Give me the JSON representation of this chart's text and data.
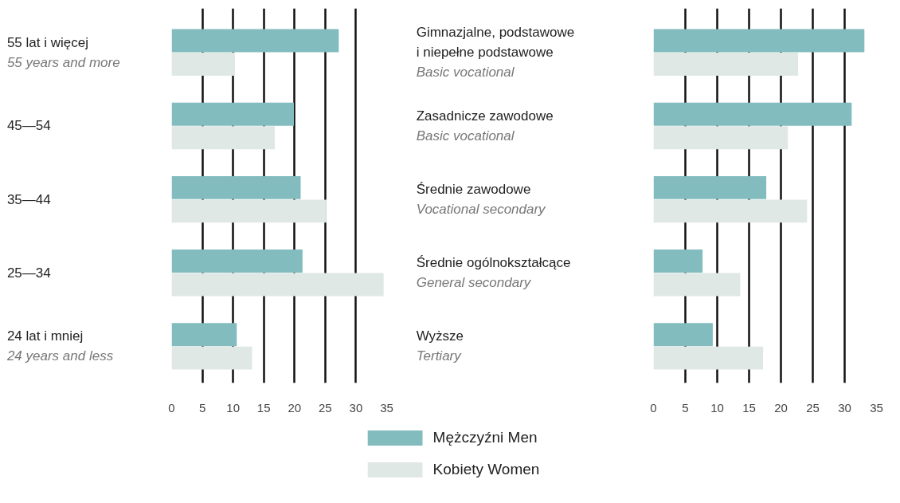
{
  "chart_data": [
    {
      "type": "bar",
      "orientation": "horizontal",
      "categories": [
        "55 lat i więcej\n55 years and more",
        "45—54",
        "35—44",
        "25—34",
        "24 lat i mniej\n24 years and less"
      ],
      "series": [
        {
          "name": "Mężczyźni Men",
          "color": "#82bcbe",
          "values": [
            27.2,
            19.9,
            21.0,
            21.3,
            10.6
          ]
        },
        {
          "name": "Kobiety Women",
          "color": "#e0e8e6",
          "values": [
            10.3,
            16.8,
            25.2,
            34.5,
            13.1
          ]
        }
      ],
      "xlim": [
        0,
        35
      ],
      "xticks": [
        0,
        5,
        10,
        15,
        20,
        25,
        30,
        35
      ],
      "grid": "x",
      "legend": "bottom"
    },
    {
      "type": "bar",
      "orientation": "horizontal",
      "categories": [
        "Gimnazjalne, podstawowe\ni niepełne podstawowe\nBasic vocational",
        "Zasadnicze zawodowe\nBasic vocational",
        "Średnie zawodowe\nVocational secondary",
        "Średnie ogólnokształcące\nGeneral secondary",
        "Wyższe\nTertiary"
      ],
      "series": [
        {
          "color": "#82bcbe",
          "values": [
            33.1,
            31.1,
            17.7,
            7.7,
            9.3
          ]
        },
        {
          "color": "#e0e8e6",
          "values": [
            22.7,
            21.1,
            24.1,
            13.6,
            17.2
          ]
        }
      ],
      "xlim": [
        0,
        35
      ],
      "xticks": [
        0,
        5,
        10,
        15,
        20,
        25,
        30,
        35
      ],
      "grid": "x"
    }
  ]
}
